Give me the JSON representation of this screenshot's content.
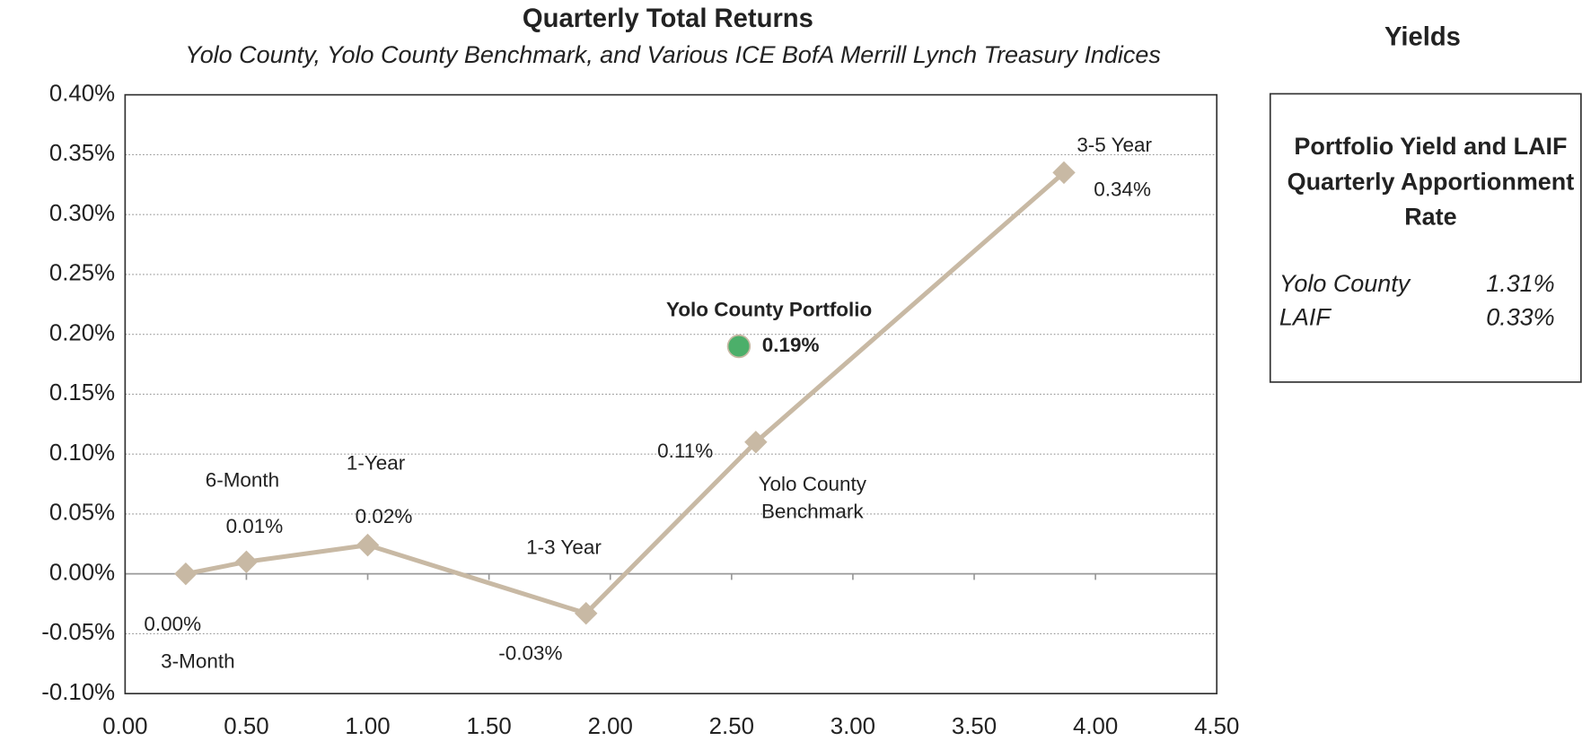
{
  "chart_data": {
    "type": "line",
    "title": "Quarterly Total Returns",
    "subtitle": "Yolo County, Yolo County Benchmark, and Various ICE BofA Merrill Lynch Treasury Indices",
    "xlim": [
      0,
      4.5
    ],
    "xticks": [
      {
        "value": 0,
        "label": "0.00"
      },
      {
        "value": 0.5,
        "label": "0.50"
      },
      {
        "value": 1,
        "label": "1.00"
      },
      {
        "value": 1.5,
        "label": "1.50"
      },
      {
        "value": 2,
        "label": "2.00"
      },
      {
        "value": 2.5,
        "label": "2.50"
      },
      {
        "value": 3,
        "label": "3.00"
      },
      {
        "value": 3.5,
        "label": "3.50"
      },
      {
        "value": 4,
        "label": "4.00"
      },
      {
        "value": 4.5,
        "label": "4.50"
      }
    ],
    "ylim": [
      -0.1,
      0.4
    ],
    "yticks": [
      {
        "value": -0.1,
        "label": "-0.10%"
      },
      {
        "value": -0.05,
        "label": "-0.05%"
      },
      {
        "value": 0,
        "label": "0.00%"
      },
      {
        "value": 0.05,
        "label": "0.05%"
      },
      {
        "value": 0.1,
        "label": "0.10%"
      },
      {
        "value": 0.15,
        "label": "0.15%"
      },
      {
        "value": 0.2,
        "label": "0.20%"
      },
      {
        "value": 0.25,
        "label": "0.25%"
      },
      {
        "value": 0.3,
        "label": "0.30%"
      },
      {
        "value": 0.35,
        "label": "0.35%"
      },
      {
        "value": 0.4,
        "label": "0.40%"
      }
    ],
    "grid": true,
    "series": [
      {
        "type": "line",
        "color": "#c8b9a4",
        "point_labels": [
          "3-Month",
          "6-Month",
          "1-Year",
          "1-3 Year",
          "Yolo County Benchmark",
          "3-5 Year"
        ],
        "x": [
          0.25,
          0.5,
          1.0,
          1.9,
          2.6,
          3.87
        ],
        "values": [
          0.0,
          0.01,
          0.024,
          -0.033,
          0.11,
          0.335
        ],
        "value_labels": [
          "0.00%",
          "0.01%",
          "0.02%",
          "-0.03%",
          "0.11%",
          "0.34%"
        ]
      },
      {
        "type": "scatter",
        "name": "Yolo County Portfolio",
        "color": "#4caf6a",
        "x": [
          2.53
        ],
        "values": [
          0.19
        ],
        "value_labels": [
          "0.19%"
        ]
      }
    ]
  },
  "yields": {
    "title": "Yields",
    "heading": "Portfolio Yield and LAIF Quarterly Apportionment Rate",
    "rows": [
      [
        "Yolo County",
        "1.31%"
      ],
      [
        "LAIF",
        "0.33%"
      ]
    ]
  }
}
